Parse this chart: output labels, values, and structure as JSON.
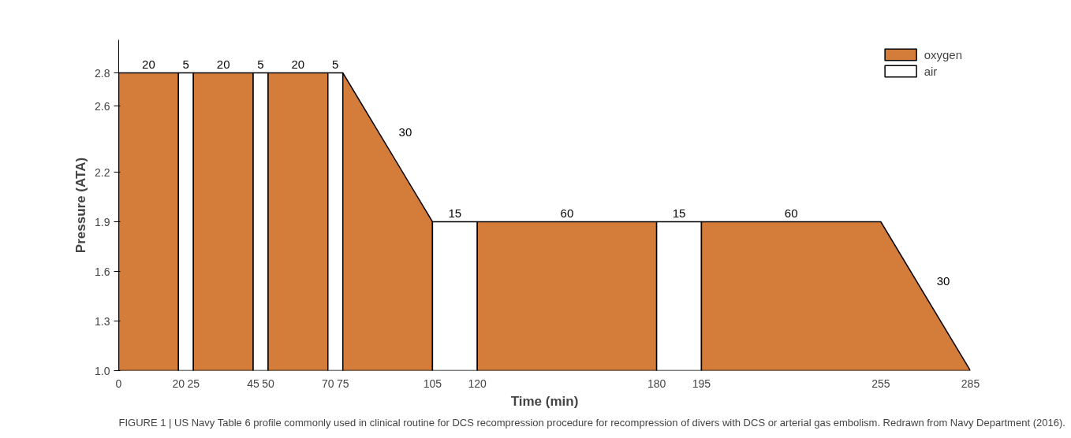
{
  "chart_data": {
    "type": "area",
    "xlabel": "Time (min)",
    "ylabel": "Pressure (ATA)",
    "xlim": [
      0,
      285
    ],
    "ylim": [
      1.0,
      3.0
    ],
    "xticks": [
      0,
      20,
      25,
      45,
      50,
      70,
      75,
      105,
      120,
      180,
      195,
      255,
      285
    ],
    "yticks": [
      {
        "value": 1.0,
        "label": "1.0"
      },
      1.3,
      1.6,
      1.9,
      2.2,
      2.6,
      2.8
    ],
    "grid": false,
    "legend": "top right",
    "series": [
      {
        "name": "oxygen",
        "color": "#d47d3b",
        "x": [
          0,
          20
        ],
        "values": [
          2.8,
          2.8
        ]
      },
      {
        "name": "air",
        "color": "#ffffff",
        "x": [
          20,
          25
        ],
        "values": [
          2.8,
          2.8
        ]
      },
      {
        "color": "#d47d3b",
        "x": [
          25,
          45
        ],
        "values": [
          2.8,
          2.8
        ]
      },
      {
        "color": "#ffffff",
        "x": [
          45,
          50
        ],
        "values": [
          2.8,
          2.8
        ]
      },
      {
        "color": "#d47d3b",
        "x": [
          50,
          70
        ],
        "values": [
          2.8,
          2.8
        ]
      },
      {
        "color": "#ffffff",
        "x": [
          70,
          75
        ],
        "values": [
          2.8,
          2.8
        ]
      },
      {
        "color": "#d47d3b",
        "x": [
          75,
          105
        ],
        "values": [
          2.8,
          1.9
        ]
      },
      {
        "color": "#ffffff",
        "x": [
          105,
          120
        ],
        "values": [
          1.9,
          1.9
        ]
      },
      {
        "color": "#d47d3b",
        "x": [
          120,
          180
        ],
        "values": [
          1.9,
          1.9
        ]
      },
      {
        "color": "#ffffff",
        "x": [
          180,
          195
        ],
        "values": [
          1.9,
          1.9
        ]
      },
      {
        "color": "#d47d3b",
        "x": [
          195,
          255,
          285
        ],
        "values": [
          1.9,
          1.9,
          1.0
        ]
      }
    ],
    "annotations": [
      {
        "text": "20",
        "x": 10,
        "y": 2.8
      },
      {
        "text": "5",
        "x": 22.5,
        "y": 2.8
      },
      {
        "text": "20",
        "x": 35,
        "y": 2.8
      },
      {
        "text": "5",
        "x": 47.5,
        "y": 2.8
      },
      {
        "text": "20",
        "x": 60,
        "y": 2.8
      },
      {
        "text": "5",
        "x": 72.5,
        "y": 2.8
      },
      {
        "text": "30",
        "x": 90,
        "y": 2.35
      },
      {
        "text": "15",
        "x": 112.5,
        "y": 1.9
      },
      {
        "text": "60",
        "x": 150,
        "y": 1.9
      },
      {
        "text": "15",
        "x": 187.5,
        "y": 1.9
      },
      {
        "text": "60",
        "x": 225,
        "y": 1.9
      },
      {
        "text": "30",
        "x": 270,
        "y": 1.45
      },
      "FIGURE 1 | US Navy Table 6 profile commonly used in clinical routine for DCS recompression procedure for recompression of divers with DCS or arterial gas embolism. Redrawn from Navy Department (2016)."
    ]
  }
}
